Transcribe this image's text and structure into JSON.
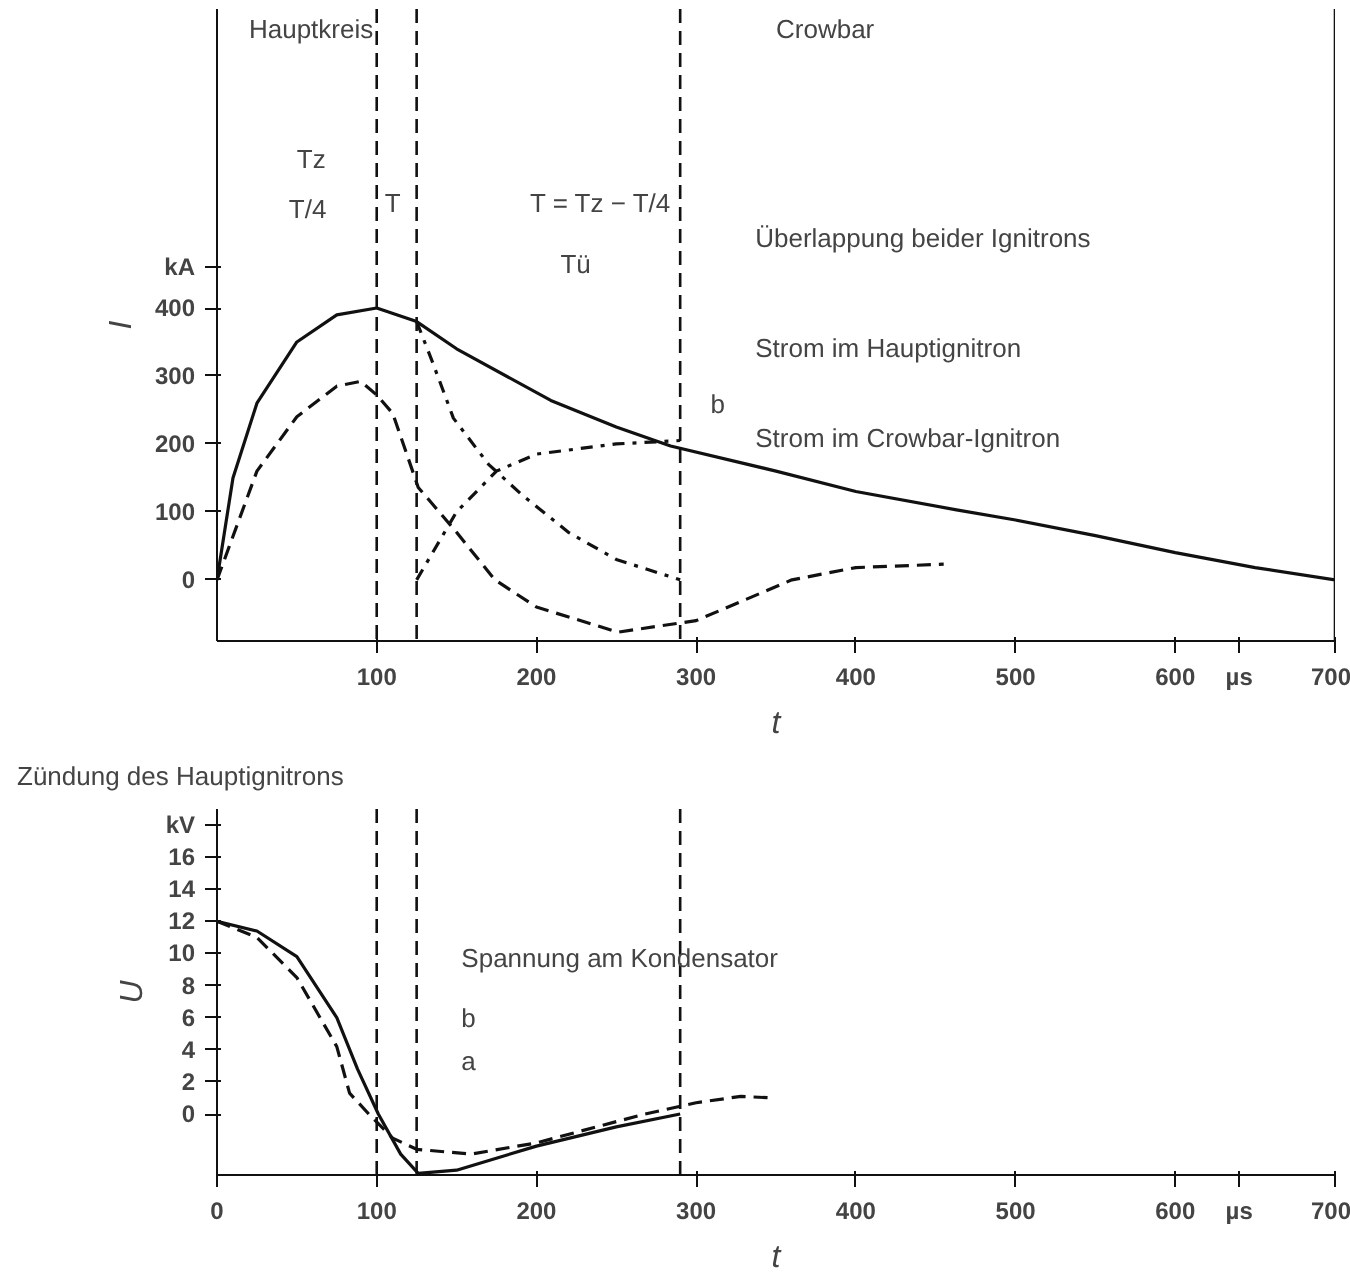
{
  "chart_data": [
    {
      "type": "line",
      "xlabel": "t",
      "ylabel": "I",
      "xlim": [
        0,
        700
      ],
      "ylim": [
        -90,
        840
      ],
      "xticks": [
        100,
        200,
        300,
        400,
        500,
        600,
        {
          "value": 640,
          "label": "µs"
        },
        700
      ],
      "yticks": [
        0,
        100,
        200,
        300,
        400,
        {
          "value": 460,
          "label": "kA"
        }
      ],
      "grid": false,
      "series": [
        {
          "color": "#111111",
          "line_style": "solid",
          "x": [
            0,
            10,
            25,
            50,
            75,
            100,
            125,
            150,
            209,
            250,
            284,
            350,
            400,
            463,
            500,
            550,
            600,
            650,
            700
          ],
          "values": [
            0,
            150,
            260,
            350,
            390,
            400,
            380,
            340,
            264,
            225,
            197,
            160,
            130,
            103,
            88,
            65,
            40,
            18,
            0
          ]
        },
        {
          "color": "#111111",
          "line_style": "dashed",
          "x": [
            0,
            25,
            50,
            75,
            90,
            100,
            110,
            126,
            150,
            174,
            200,
            251,
            300,
            360,
            400,
            455
          ],
          "values": [
            0,
            160,
            240,
            285,
            292,
            272,
            245,
            136,
            70,
            0,
            -40,
            -77,
            -60,
            0,
            18,
            23
          ]
        },
        {
          "color": "#111111",
          "line_style": "dashdot",
          "x": [
            125,
            135,
            148,
            170,
            191,
            220,
            250,
            290
          ],
          "values": [
            380,
            320,
            238,
            170,
            125,
            70,
            30,
            0
          ]
        },
        {
          "color": "#111111",
          "line_style": "dashdot",
          "x": [
            125,
            150,
            175,
            200,
            250,
            290
          ],
          "values": [
            0,
            100,
            160,
            185,
            200,
            205
          ]
        }
      ],
      "ref_lines": [
        {
          "axis": "x",
          "value": 100,
          "line_style": "dashed",
          "color": "#111111"
        },
        {
          "axis": "x",
          "value": 125,
          "line_style": "dashed",
          "color": "#111111"
        },
        {
          "axis": "x",
          "value": 290,
          "line_style": "dashed",
          "color": "#111111"
        },
        {
          "axis": "x",
          "value": 700,
          "line_style": "solid",
          "color": "#111111"
        }
      ],
      "annotations": [
        "Hauptkreis",
        "Crowbar",
        "Tz",
        "T/4",
        "T",
        "T = Tz − T/4",
        "Tü",
        "Überlappung beider Ignitrons",
        "Strom im Hauptignitron",
        "b",
        "Strom im Crowbar-Ignitron",
        "Zündung des Hauptignitrons"
      ]
    },
    {
      "type": "line",
      "xlabel": "t",
      "ylabel": "U",
      "xlim": [
        0,
        700
      ],
      "ylim": [
        -3.8,
        19
      ],
      "xticks": [
        0,
        100,
        200,
        300,
        400,
        500,
        600,
        {
          "value": 640,
          "label": "µs"
        },
        700
      ],
      "yticks": [
        0,
        2,
        4,
        6,
        8,
        10,
        12,
        14,
        16,
        {
          "value": 18,
          "label": "kV"
        }
      ],
      "grid": false,
      "series": [
        {
          "color": "#111111",
          "line_style": "solid",
          "x": [
            0,
            25,
            50,
            75,
            88,
            101,
            115,
            126,
            150,
            200,
            250,
            290
          ],
          "values": [
            12,
            11.4,
            9.8,
            6,
            2.8,
            0,
            -2.5,
            -3.7,
            -3.5,
            -2,
            -0.8,
            0
          ]
        },
        {
          "color": "#111111",
          "line_style": "dashed",
          "x": [
            0,
            25,
            50,
            75,
            83,
            95,
            110,
            125,
            159,
            200,
            268,
            300,
            328,
            348
          ],
          "values": [
            12,
            11,
            8.5,
            4.2,
            1.3,
            0,
            -1.5,
            -2.2,
            -2.5,
            -1.8,
            0,
            0.7,
            1.1,
            1
          ]
        }
      ],
      "ref_lines": [
        {
          "axis": "x",
          "value": 100,
          "line_style": "dashed",
          "color": "#111111"
        },
        {
          "axis": "x",
          "value": 125,
          "line_style": "dashed",
          "color": "#111111"
        },
        {
          "axis": "x",
          "value": 290,
          "line_style": "dashed",
          "color": "#111111"
        }
      ],
      "annotations": [
        "Spannung am Kondensator",
        "b",
        "a"
      ]
    }
  ]
}
